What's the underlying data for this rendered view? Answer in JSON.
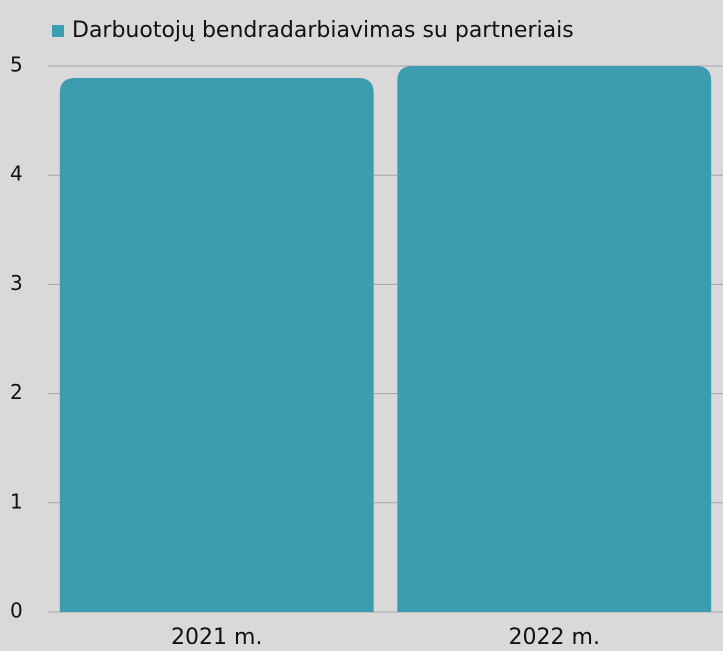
{
  "chart_data": {
    "type": "bar",
    "categories": [
      "2021 m.",
      "2022 m."
    ],
    "series": [
      {
        "name": "Darbuotojų bendradarbiavimas su partneriais",
        "color": "#3d9db0",
        "values": [
          4.89,
          5.0
        ]
      }
    ],
    "ylim": [
      0,
      5
    ],
    "yticks": [
      0,
      1,
      2,
      3,
      4,
      5
    ],
    "grid": true,
    "legend": "top"
  }
}
